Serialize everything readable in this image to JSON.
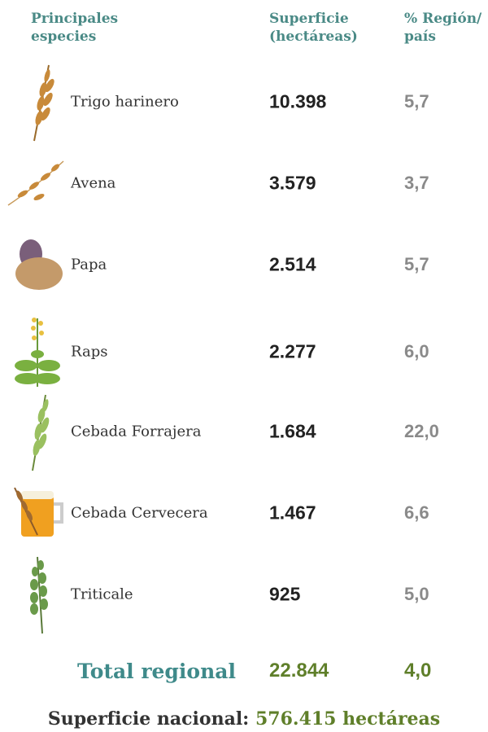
{
  "header": {
    "columns": [
      [
        "Principales",
        "especies"
      ],
      [
        "Superficie",
        "(hectáreas)"
      ],
      [
        "% Región/",
        "país"
      ]
    ]
  },
  "table": {
    "rows": [
      [
        "Trigo harinero",
        "10.398",
        "5,7"
      ],
      [
        "Avena",
        "3.579",
        "3,7"
      ],
      [
        "Papa",
        "2.514",
        "5,7"
      ],
      [
        "Raps",
        "2.277",
        "6,0"
      ],
      [
        "Cebada Forrajera",
        "1.684",
        "22,0"
      ],
      [
        "Cebada Cervecera",
        "1.467",
        "6,6"
      ],
      [
        "Triticale",
        "925",
        "5,0"
      ]
    ]
  },
  "total": {
    "label": "Total regional",
    "surface": "22.844",
    "percent": "4,0"
  },
  "footer": {
    "label": "Superficie nacional:",
    "value": "576.415 hectáreas"
  }
}
